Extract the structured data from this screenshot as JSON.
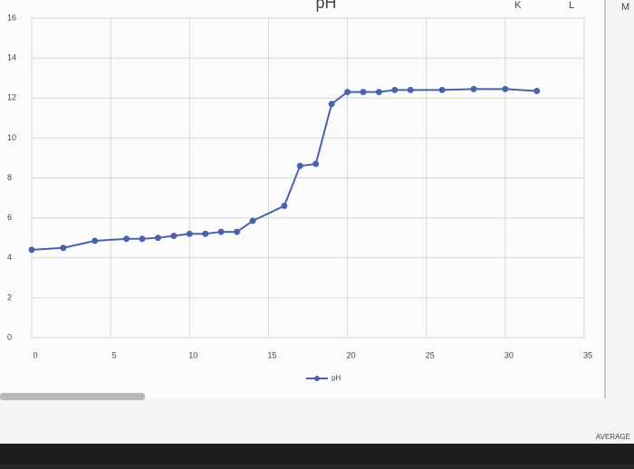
{
  "chart_data": {
    "type": "line",
    "title": "pH",
    "x": [
      0,
      2,
      4,
      6,
      7,
      8,
      9,
      10,
      11,
      12,
      13,
      14,
      16,
      17,
      18,
      19,
      20,
      21,
      22,
      23,
      24,
      26,
      28,
      30,
      32
    ],
    "series": [
      {
        "name": "pH",
        "color": "#4a62ae",
        "values": [
          4.4,
          4.5,
          4.85,
          4.95,
          4.95,
          5.0,
          5.1,
          5.2,
          5.2,
          5.3,
          5.3,
          5.85,
          6.6,
          8.6,
          8.7,
          11.7,
          12.3,
          12.3,
          12.3,
          12.4,
          12.4,
          12.4,
          12.45,
          12.45,
          12.35
        ]
      }
    ],
    "xlim": [
      0,
      35
    ],
    "xticks": [
      0,
      5,
      10,
      15,
      20,
      25,
      30,
      35
    ],
    "ylim": [
      0,
      16
    ],
    "yticks": [
      0,
      2,
      4,
      6,
      8,
      10,
      12,
      14,
      16
    ],
    "grid": true,
    "legend": "bottom"
  },
  "spreadsheet": {
    "columns": [
      "K",
      "L",
      "M"
    ],
    "cell": "AVERAGE"
  }
}
